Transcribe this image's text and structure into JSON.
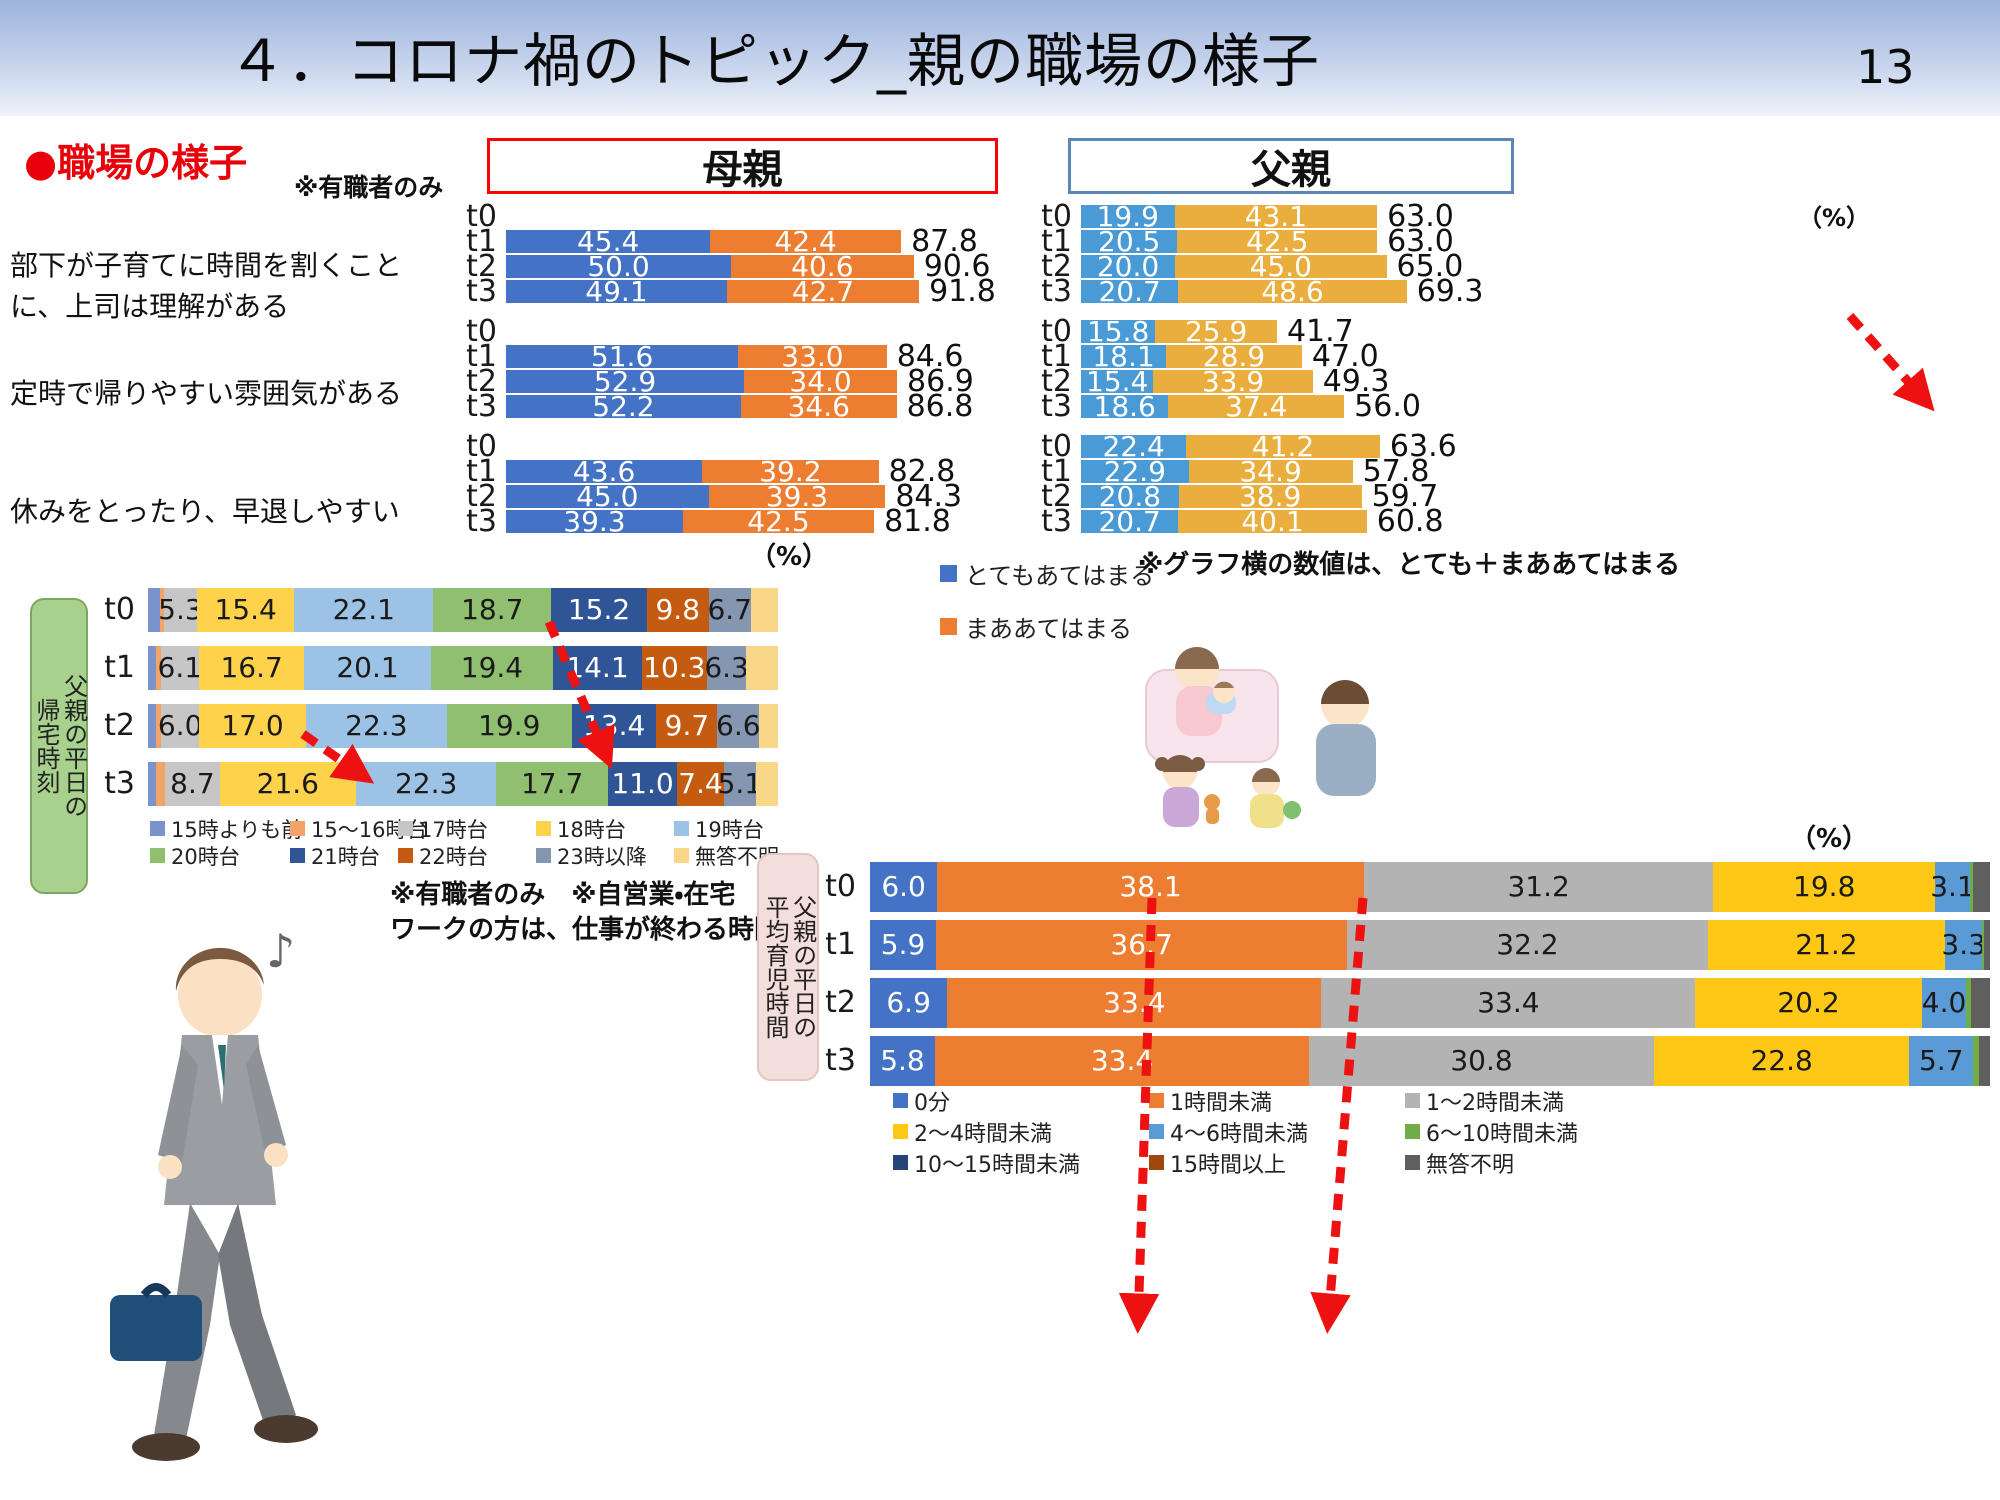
{
  "header": {
    "title": "４．コロナ禍のトピック_親の職場の様子",
    "page_number": "13"
  },
  "labels": {
    "section_heading": "●職場の様子",
    "employed_note": "※有職者のみ",
    "mother_header": "母親",
    "father_header": "父親",
    "percent": "（%）",
    "graph_note": "※グラフ横の数値は、とても＋まああてはまる",
    "return_box_line1": "父親の平日の",
    "return_box_line2": "帰宅時刻",
    "care_box_line1": "父親の平日の",
    "care_box_line2": "平均育児時間",
    "return_time_note1": "※有職者のみ　※自営業・在宅",
    "return_time_note2": "ワークの方は、仕事が終わる時間"
  },
  "statements": [
    "部下が子育てに時間を割くことに、上司は理解がある",
    "定時で帰りやすい雰囲気がある",
    "休みをとったり、早退しやすい"
  ],
  "chart_data": [
    {
      "id": "workplace_mother",
      "type": "bar",
      "orientation": "horizontal",
      "stacked": true,
      "unit": "%",
      "title": "母親",
      "series": [
        "とてもあてはまる",
        "まああてはまる"
      ],
      "colors": [
        "#4472c4",
        "#ed7d31"
      ],
      "note": "グラフ横の数値は、とても＋まああてはまる",
      "groups": [
        {
          "statement": "部下が子育てに時間を割くことに、上司は理解がある",
          "rows": [
            {
              "t": "t0",
              "values": [],
              "labels": [],
              "total": null,
              "total_label": ""
            },
            {
              "t": "t1",
              "values": [
                45.4,
                42.4
              ],
              "labels": [
                "45.4",
                "42.4"
              ],
              "total": 87.8,
              "total_label": "87.8"
            },
            {
              "t": "t2",
              "values": [
                50.0,
                40.6
              ],
              "labels": [
                "50.0",
                "40.6"
              ],
              "total": 90.6,
              "total_label": "90.6"
            },
            {
              "t": "t3",
              "values": [
                49.1,
                42.7
              ],
              "labels": [
                "49.1",
                "42.7"
              ],
              "total": 91.8,
              "total_label": "91.8"
            }
          ]
        },
        {
          "statement": "定時で帰りやすい雰囲気がある",
          "rows": [
            {
              "t": "t0",
              "values": [],
              "labels": [],
              "total": null,
              "total_label": ""
            },
            {
              "t": "t1",
              "values": [
                51.6,
                33.0
              ],
              "labels": [
                "51.6",
                "33.0"
              ],
              "total": 84.6,
              "total_label": "84.6"
            },
            {
              "t": "t2",
              "values": [
                52.9,
                34.0
              ],
              "labels": [
                "52.9",
                "34.0"
              ],
              "total": 86.9,
              "total_label": "86.9"
            },
            {
              "t": "t3",
              "values": [
                52.2,
                34.6
              ],
              "labels": [
                "52.2",
                "34.6"
              ],
              "total": 86.8,
              "total_label": "86.8"
            }
          ]
        },
        {
          "statement": "休みをとったり、早退しやすい",
          "rows": [
            {
              "t": "t0",
              "values": [],
              "labels": [],
              "total": null,
              "total_label": ""
            },
            {
              "t": "t1",
              "values": [
                43.6,
                39.2
              ],
              "labels": [
                "43.6",
                "39.2"
              ],
              "total": 82.8,
              "total_label": "82.8"
            },
            {
              "t": "t2",
              "values": [
                45.0,
                39.3
              ],
              "labels": [
                "45.0",
                "39.3"
              ],
              "total": 84.3,
              "total_label": "84.3"
            },
            {
              "t": "t3",
              "values": [
                39.3,
                42.5
              ],
              "labels": [
                "39.3",
                "42.5"
              ],
              "total": 81.8,
              "total_label": "81.8"
            }
          ]
        }
      ]
    },
    {
      "id": "workplace_father",
      "type": "bar",
      "orientation": "horizontal",
      "stacked": true,
      "unit": "%",
      "title": "父親",
      "series": [
        "とてもあてはまる",
        "まああてはまる"
      ],
      "colors": [
        "#4a9ad5",
        "#eaae3e"
      ],
      "groups": [
        {
          "statement": "部下が子育てに時間を割くことに、上司は理解がある",
          "rows": [
            {
              "t": "t0",
              "values": [
                19.9,
                43.1
              ],
              "labels": [
                "19.9",
                "43.1"
              ],
              "total": 63.0,
              "total_label": "63.0"
            },
            {
              "t": "t1",
              "values": [
                20.5,
                42.5
              ],
              "labels": [
                "20.5",
                "42.5"
              ],
              "total": 63.0,
              "total_label": "63.0"
            },
            {
              "t": "t2",
              "values": [
                20.0,
                45.0
              ],
              "labels": [
                "20.0",
                "45.0"
              ],
              "total": 65.0,
              "total_label": "65.0"
            },
            {
              "t": "t3",
              "values": [
                20.7,
                48.6
              ],
              "labels": [
                "20.7",
                "48.6"
              ],
              "total": 69.3,
              "total_label": "69.3"
            }
          ]
        },
        {
          "statement": "定時で帰りやすい雰囲気がある",
          "rows": [
            {
              "t": "t0",
              "values": [
                15.8,
                25.9
              ],
              "labels": [
                "15.8",
                "25.9"
              ],
              "total": 41.7,
              "total_label": "41.7"
            },
            {
              "t": "t1",
              "values": [
                18.1,
                28.9
              ],
              "labels": [
                "18.1",
                "28.9"
              ],
              "total": 47.0,
              "total_label": "47.0"
            },
            {
              "t": "t2",
              "values": [
                15.4,
                33.9
              ],
              "labels": [
                "15.4",
                "33.9"
              ],
              "total": 49.3,
              "total_label": "49.3"
            },
            {
              "t": "t3",
              "values": [
                18.6,
                37.4
              ],
              "labels": [
                "18.6",
                "37.4"
              ],
              "total": 56.0,
              "total_label": "56.0"
            }
          ]
        },
        {
          "statement": "休みをとったり、早退しやすい",
          "rows": [
            {
              "t": "t0",
              "values": [
                22.4,
                41.2
              ],
              "labels": [
                "22.4",
                "41.2"
              ],
              "total": 63.6,
              "total_label": "63.6"
            },
            {
              "t": "t1",
              "values": [
                22.9,
                34.9
              ],
              "labels": [
                "22.9",
                "34.9"
              ],
              "total": 57.8,
              "total_label": "57.8"
            },
            {
              "t": "t2",
              "values": [
                20.8,
                38.9
              ],
              "labels": [
                "20.8",
                "38.9"
              ],
              "total": 59.7,
              "total_label": "59.7"
            },
            {
              "t": "t3",
              "values": [
                20.7,
                40.1
              ],
              "labels": [
                "20.7",
                "40.1"
              ],
              "total": 60.8,
              "total_label": "60.8"
            }
          ]
        }
      ]
    },
    {
      "id": "return_time",
      "type": "bar",
      "orientation": "horizontal",
      "stacked": true,
      "unit": "%",
      "title": "父親の平日の帰宅時刻",
      "categories": [
        "15時よりも前",
        "15～16時台",
        "17時台",
        "18時台",
        "19時台",
        "20時台",
        "21時台",
        "22時台",
        "23時以降",
        "無答不明"
      ],
      "colors": [
        "#7a93cb",
        "#f2a367",
        "#c6c6c6",
        "#ffd24c",
        "#9cc3e5",
        "#90c06f",
        "#2f5597",
        "#c55a11",
        "#8496b0",
        "#fad689"
      ],
      "label_text_colors": [
        "#1a1a1a",
        "#1a1a1a",
        "#1a1a1a",
        "#1a1a1a",
        "#1a1a1a",
        "#1a1a1a",
        "#ffffff",
        "#ffffff",
        "#1a1a1a",
        "#1a1a1a"
      ],
      "rows": [
        {
          "t": "t0",
          "values": [
            1.9,
            0.6,
            5.3,
            15.4,
            22.1,
            18.7,
            15.2,
            9.8,
            6.7,
            4.3
          ],
          "labels": [
            "",
            "",
            "5.3",
            "15.4",
            "22.1",
            "18.7",
            "15.2",
            "9.8",
            "6.7",
            ""
          ]
        },
        {
          "t": "t1",
          "values": [
            1.3,
            0.7,
            6.1,
            16.7,
            20.1,
            19.4,
            14.1,
            10.3,
            6.3,
            5.0
          ],
          "labels": [
            "",
            "",
            "6.1",
            "16.7",
            "20.1",
            "19.4",
            "14.1",
            "10.3",
            "6.3",
            ""
          ]
        },
        {
          "t": "t2",
          "values": [
            1.3,
            0.8,
            6.0,
            17.0,
            22.3,
            19.9,
            13.4,
            9.7,
            6.6,
            3.0
          ],
          "labels": [
            "",
            "",
            "6.0",
            "17.0",
            "22.3",
            "19.9",
            "13.4",
            "9.7",
            "6.6",
            ""
          ]
        },
        {
          "t": "t3",
          "values": [
            1.3,
            1.4,
            8.7,
            21.6,
            22.3,
            17.7,
            11.0,
            7.4,
            5.1,
            3.5
          ],
          "labels": [
            "",
            "",
            "8.7",
            "21.6",
            "22.3",
            "17.7",
            "11.0",
            "7.4",
            "5.1",
            ""
          ]
        }
      ],
      "notes": "※有職者のみ　※自営業・在宅ワークの方は、仕事が終わる時間"
    },
    {
      "id": "childcare_time",
      "type": "bar",
      "orientation": "horizontal",
      "stacked": true,
      "unit": "%",
      "title": "父親の平日の平均育児時間",
      "categories": [
        "0分",
        "1時間未満",
        "1～2時間未満",
        "2～4時間未満",
        "4～6時間未満",
        "6～10時間未満",
        "10～15時間未満",
        "15時間以上",
        "無答不明"
      ],
      "colors": [
        "#4472c4",
        "#ed7d31",
        "#b3b3b3",
        "#ffc716",
        "#5b9bd5",
        "#70ad47",
        "#264478",
        "#9e480e",
        "#5f5f5f"
      ],
      "label_text_colors": [
        "#ffffff",
        "#ffffff",
        "#1a1a1a",
        "#1a1a1a",
        "#1a1a1a",
        "#1a1a1a",
        "#ffffff",
        "#ffffff",
        "#ffffff"
      ],
      "rows": [
        {
          "t": "t0",
          "values": [
            6.0,
            38.1,
            31.2,
            19.8,
            3.1,
            0.3,
            0,
            0,
            1.5
          ],
          "labels": [
            "6.0",
            "38.1",
            "31.2",
            "19.8",
            "3.1",
            "",
            "",
            "",
            ""
          ]
        },
        {
          "t": "t1",
          "values": [
            5.9,
            36.7,
            32.2,
            21.2,
            3.3,
            0.2,
            0,
            0,
            0.5
          ],
          "labels": [
            "5.9",
            "36.7",
            "32.2",
            "21.2",
            "3.3",
            "",
            "",
            "",
            ""
          ]
        },
        {
          "t": "t2",
          "values": [
            6.9,
            33.4,
            33.4,
            20.2,
            4.0,
            0.4,
            0,
            0,
            1.7
          ],
          "labels": [
            "6.9",
            "33.4",
            "33.4",
            "20.2",
            "4.0",
            "",
            "",
            "",
            ""
          ]
        },
        {
          "t": "t3",
          "values": [
            5.8,
            33.4,
            30.8,
            22.8,
            5.7,
            0.5,
            0,
            0,
            1.0
          ],
          "labels": [
            "5.8",
            "33.4",
            "30.8",
            "22.8",
            "5.7",
            "",
            "",
            "",
            ""
          ]
        }
      ]
    }
  ]
}
